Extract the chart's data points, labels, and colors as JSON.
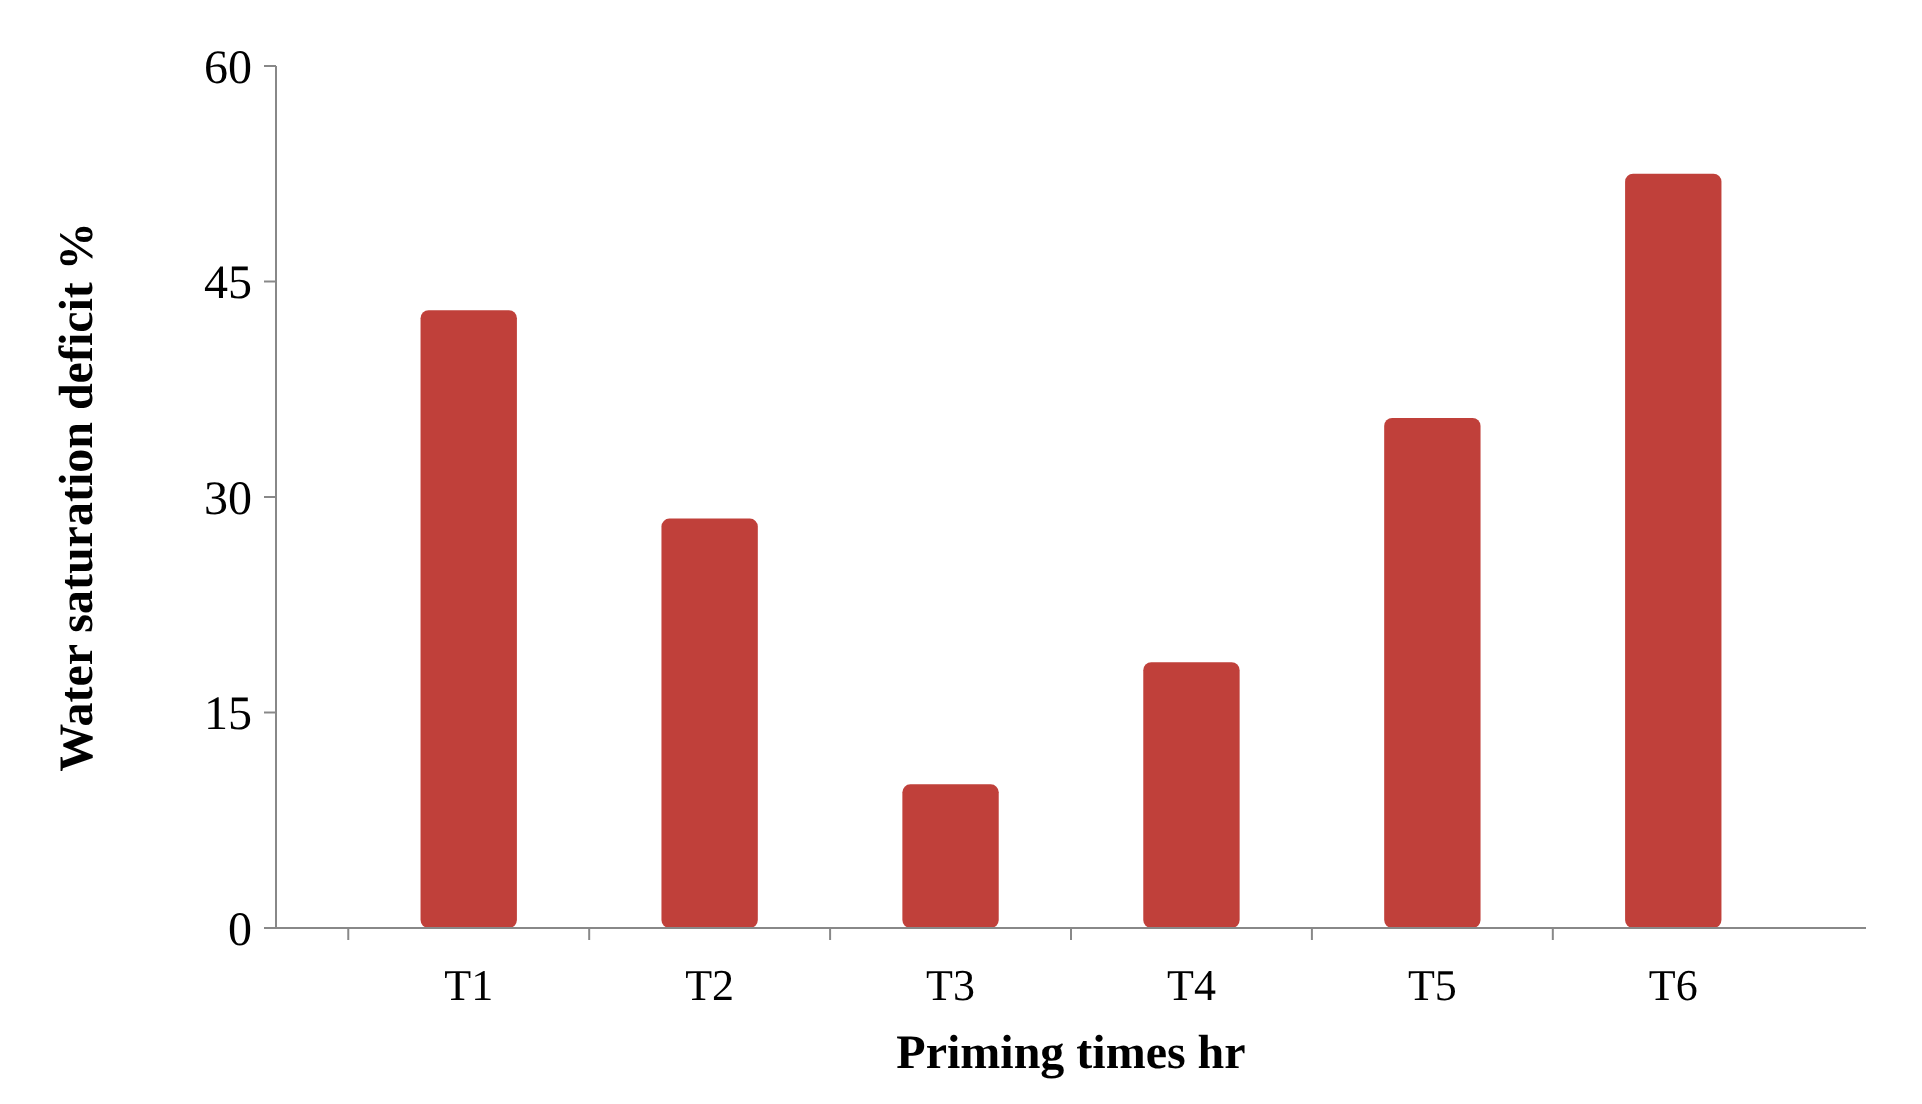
{
  "chart_data": {
    "type": "bar",
    "xlabel": "Priming times hr",
    "ylabel": "Water saturation deficit %",
    "categories": [
      "T1",
      "T2",
      "T3",
      "T4",
      "T5",
      "T6"
    ],
    "values": [
      43,
      28.5,
      10,
      18.5,
      35.5,
      52.5
    ],
    "color": "#c0403a",
    "ylim": [
      0,
      60
    ],
    "yticks": [
      0,
      15,
      30,
      45,
      60
    ],
    "grid": false
  }
}
